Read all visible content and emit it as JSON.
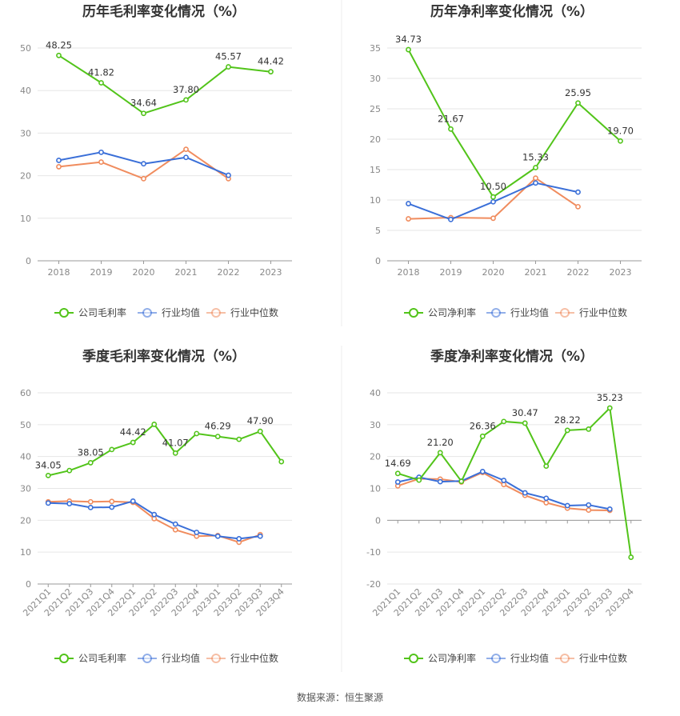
{
  "source": "数据来源：恒生聚源",
  "chart_data": [
    {
      "id": "c1",
      "type": "line",
      "title": "历年毛利率变化情况（%）",
      "categories": [
        "2018",
        "2019",
        "2020",
        "2021",
        "2022",
        "2023"
      ],
      "ylim": [
        0,
        50
      ],
      "yticks": [
        0,
        10,
        20,
        30,
        40,
        50
      ],
      "xlabel": "",
      "ylabel": "",
      "series": [
        {
          "name": "公司毛利率",
          "color": "#52c41a",
          "labeled": true,
          "values": [
            48.25,
            41.82,
            34.64,
            37.8,
            45.57,
            44.42
          ]
        },
        {
          "name": "行业均值",
          "color": "#3a6fd8",
          "labeled": false,
          "values": [
            23.6,
            25.5,
            22.8,
            24.3,
            20.1,
            null
          ]
        },
        {
          "name": "行业中位数",
          "color": "#f08c5e",
          "labeled": false,
          "values": [
            22.1,
            23.2,
            19.3,
            26.2,
            19.3,
            null
          ]
        }
      ]
    },
    {
      "id": "c2",
      "type": "line",
      "title": "历年净利率变化情况（%）",
      "categories": [
        "2018",
        "2019",
        "2020",
        "2021",
        "2022",
        "2023"
      ],
      "ylim": [
        0,
        35
      ],
      "yticks": [
        0,
        5,
        10,
        15,
        20,
        25,
        30,
        35
      ],
      "xlabel": "",
      "ylabel": "",
      "series": [
        {
          "name": "公司净利率",
          "color": "#52c41a",
          "labeled": true,
          "values": [
            34.73,
            21.67,
            10.5,
            15.33,
            25.95,
            19.7
          ]
        },
        {
          "name": "行业均值",
          "color": "#3a6fd8",
          "labeled": false,
          "values": [
            9.4,
            6.8,
            9.7,
            12.8,
            11.3,
            null
          ]
        },
        {
          "name": "行业中位数",
          "color": "#f08c5e",
          "labeled": false,
          "values": [
            6.9,
            7.1,
            7.0,
            13.6,
            8.9,
            null
          ]
        }
      ]
    },
    {
      "id": "c3",
      "type": "line",
      "title": "季度毛利率变化情况（%）",
      "categories": [
        "2021Q1",
        "2021Q2",
        "2021Q3",
        "2021Q4",
        "2022Q1",
        "2022Q2",
        "2022Q3",
        "2022Q4",
        "2023Q1",
        "2023Q2",
        "2023Q3",
        "2023Q4"
      ],
      "ylim": [
        0,
        60
      ],
      "yticks": [
        0,
        10,
        20,
        30,
        40,
        50,
        60
      ],
      "xlabel": "",
      "ylabel": "",
      "series": [
        {
          "name": "公司毛利率",
          "color": "#52c41a",
          "labeled": true,
          "values": [
            34.05,
            35.6,
            38.05,
            42.2,
            44.42,
            50.1,
            41.07,
            47.2,
            46.29,
            45.4,
            47.9,
            38.4
          ],
          "data_labels": [
            "34.05",
            null,
            "38.05",
            null,
            "44.42",
            null,
            "41.07",
            null,
            "46.29",
            null,
            "47.90",
            null
          ]
        },
        {
          "name": "行业均值",
          "color": "#3a6fd8",
          "labeled": false,
          "values": [
            25.4,
            25.2,
            24.0,
            24.1,
            26.0,
            21.8,
            18.8,
            16.2,
            15.0,
            14.2,
            15.0,
            null
          ]
        },
        {
          "name": "行业中位数",
          "color": "#f08c5e",
          "labeled": false,
          "values": [
            25.8,
            26.0,
            25.8,
            25.9,
            25.6,
            20.5,
            17.0,
            15.0,
            15.2,
            13.1,
            15.5,
            null
          ]
        }
      ]
    },
    {
      "id": "c4",
      "type": "line",
      "title": "季度净利率变化情况（%）",
      "categories": [
        "2021Q1",
        "2021Q2",
        "2021Q3",
        "2021Q4",
        "2022Q1",
        "2022Q2",
        "2022Q3",
        "2022Q4",
        "2023Q1",
        "2023Q2",
        "2023Q3",
        "2023Q4"
      ],
      "ylim": [
        -20,
        40
      ],
      "yticks": [
        -20,
        -10,
        0,
        10,
        20,
        30,
        40
      ],
      "xlabel": "",
      "ylabel": "",
      "series": [
        {
          "name": "公司净利率",
          "color": "#52c41a",
          "labeled": true,
          "values": [
            14.69,
            12.6,
            21.2,
            12.2,
            26.36,
            31.0,
            30.47,
            17.0,
            28.22,
            28.6,
            35.23,
            -11.6
          ],
          "data_labels": [
            "14.69",
            null,
            "21.20",
            null,
            "26.36",
            null,
            "30.47",
            null,
            "28.22",
            null,
            "35.23",
            null
          ]
        },
        {
          "name": "行业均值",
          "color": "#3a6fd8",
          "labeled": false,
          "values": [
            12.0,
            13.5,
            12.1,
            12.3,
            15.3,
            12.5,
            8.6,
            6.9,
            4.6,
            4.8,
            3.5,
            null
          ]
        },
        {
          "name": "行业中位数",
          "color": "#f08c5e",
          "labeled": false,
          "values": [
            10.8,
            13.0,
            12.9,
            12.0,
            15.0,
            11.2,
            7.8,
            5.5,
            3.8,
            3.2,
            3.1,
            null
          ]
        }
      ]
    }
  ]
}
